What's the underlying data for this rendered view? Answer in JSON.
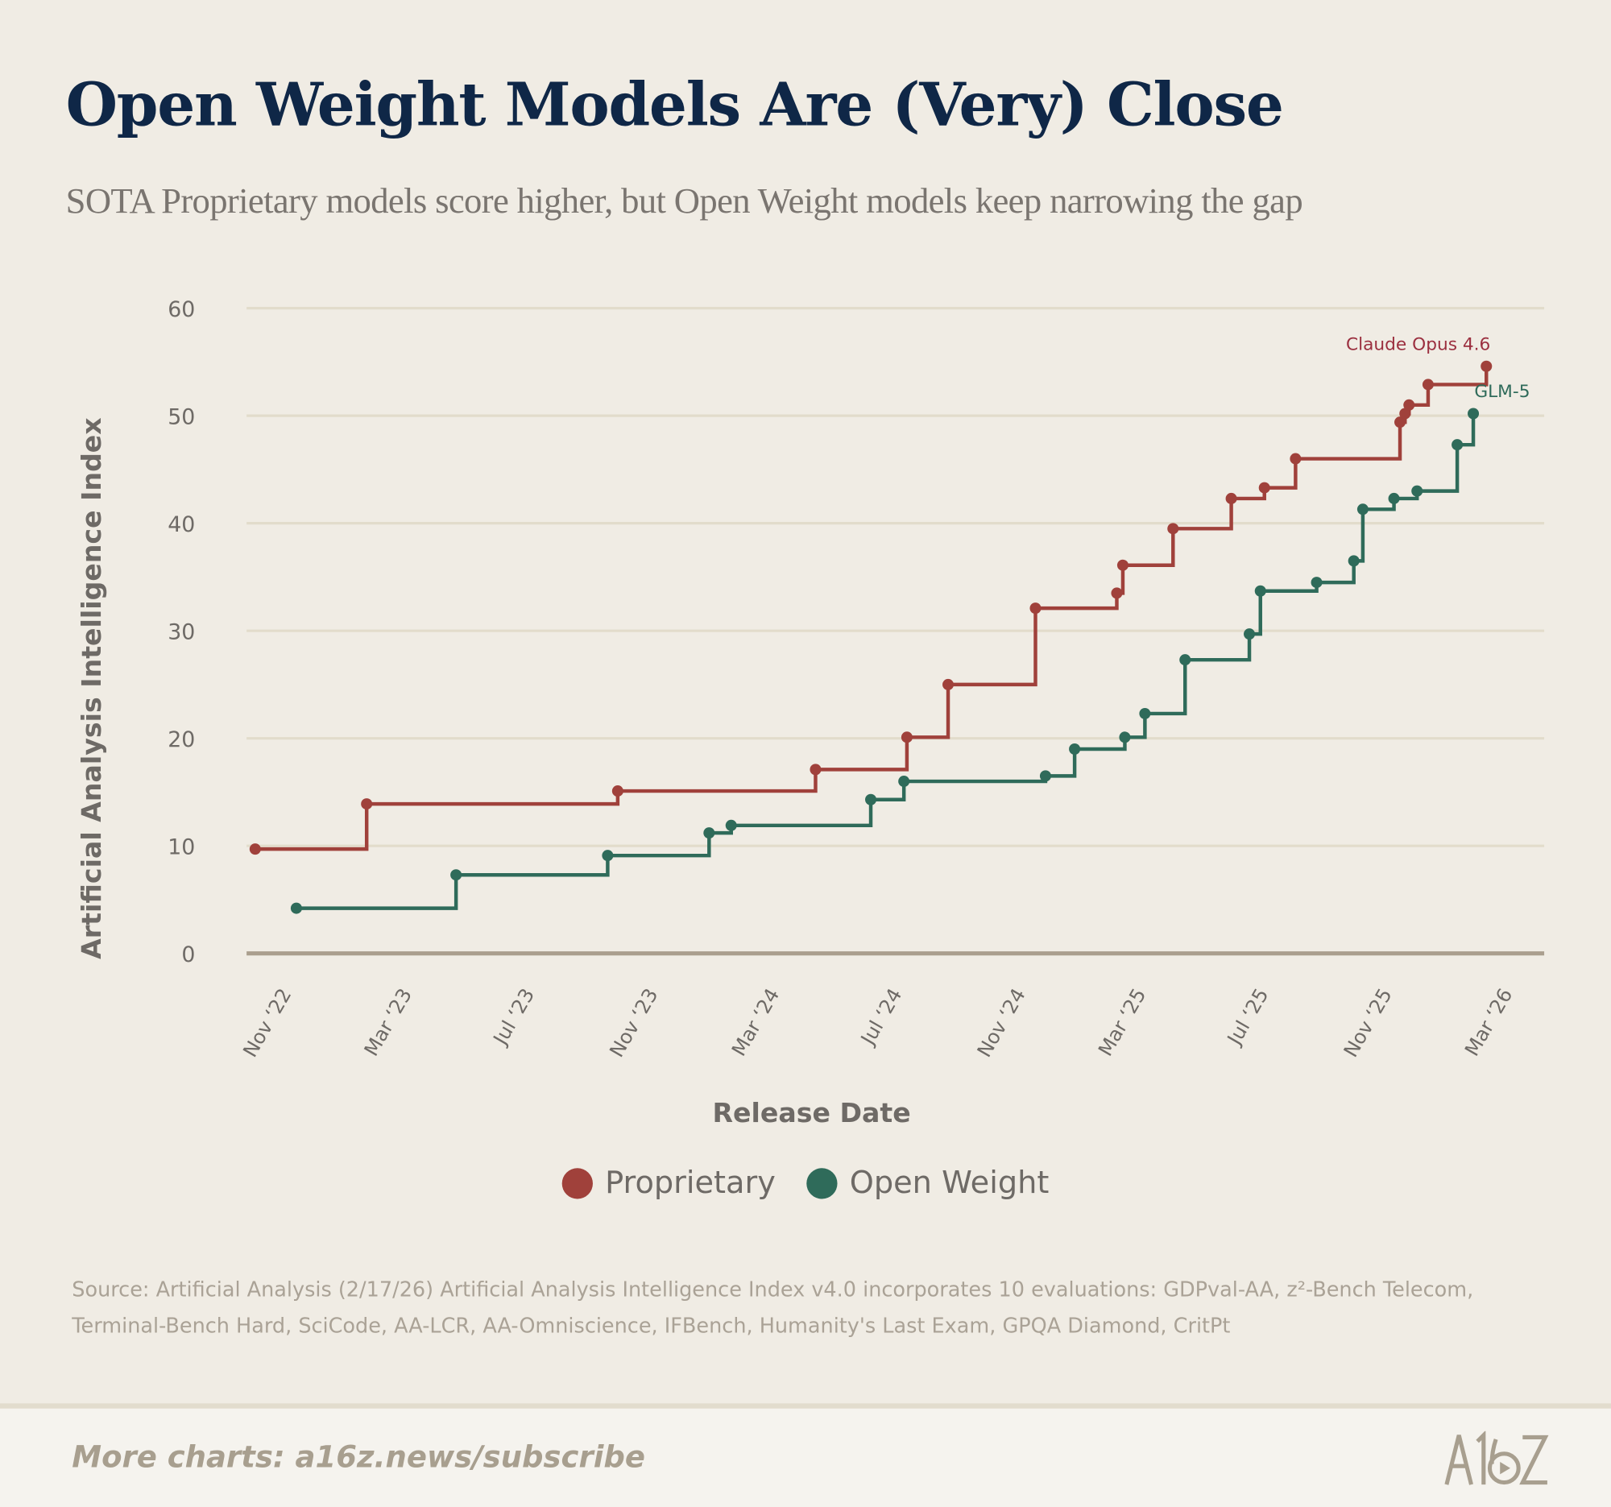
{
  "header": {
    "title": "Open Weight Models Are (Very) Close",
    "subtitle": "SOTA Proprietary models score higher, but Open Weight models keep narrowing the gap"
  },
  "chart_data": {
    "type": "line",
    "step": true,
    "xlabel": "Release Date",
    "ylabel": "Artificial Analysis Intelligence Index",
    "ylim": [
      0,
      60
    ],
    "yticks": [
      0,
      10,
      20,
      30,
      40,
      50,
      60
    ],
    "xticks": [
      {
        "date": "2022-11-01",
        "label": "Nov ‘22"
      },
      {
        "date": "2023-03-01",
        "label": "Mar ‘23"
      },
      {
        "date": "2023-07-01",
        "label": "Jul ‘23"
      },
      {
        "date": "2023-11-01",
        "label": "Nov ‘23"
      },
      {
        "date": "2024-03-01",
        "label": "Mar ‘24"
      },
      {
        "date": "2024-07-01",
        "label": "Jul ‘24"
      },
      {
        "date": "2024-11-01",
        "label": "Nov ‘24"
      },
      {
        "date": "2025-03-01",
        "label": "Mar ‘25"
      },
      {
        "date": "2025-07-01",
        "label": "Jul ‘25"
      },
      {
        "date": "2025-11-01",
        "label": "Nov ‘25"
      },
      {
        "date": "2026-03-01",
        "label": "Mar ‘26"
      }
    ],
    "grid": true,
    "legend_position": "bottom",
    "series": [
      {
        "name": "Proprietary",
        "color": "#a0413b",
        "annotation": "Claude Opus 4.6",
        "annotation_color": "#9b2f3f",
        "points": [
          [
            "2022-10-15",
            9.7
          ],
          [
            "2023-02-03",
            13.9
          ],
          [
            "2023-10-11",
            15.1
          ],
          [
            "2024-04-25",
            17.1
          ],
          [
            "2024-07-25",
            20.1
          ],
          [
            "2024-09-04",
            25.0
          ],
          [
            "2024-11-30",
            32.1
          ],
          [
            "2025-02-19",
            33.5
          ],
          [
            "2025-02-25",
            36.1
          ],
          [
            "2025-04-16",
            39.5
          ],
          [
            "2025-06-13",
            42.3
          ],
          [
            "2025-07-16",
            43.3
          ],
          [
            "2025-08-16",
            46.0
          ],
          [
            "2025-11-28",
            49.4
          ],
          [
            "2025-12-03",
            50.2
          ],
          [
            "2025-12-07",
            51.0
          ],
          [
            "2025-12-26",
            52.9
          ],
          [
            "2026-02-22",
            54.6
          ]
        ]
      },
      {
        "name": "Open Weight",
        "color": "#2f6b5a",
        "annotation": "GLM-5",
        "annotation_color": "#2f6b5a",
        "points": [
          [
            "2022-11-25",
            4.2
          ],
          [
            "2023-05-03",
            7.3
          ],
          [
            "2023-10-01",
            9.1
          ],
          [
            "2024-01-10",
            11.2
          ],
          [
            "2024-02-01",
            11.9
          ],
          [
            "2024-06-19",
            14.3
          ],
          [
            "2024-07-22",
            16.0
          ],
          [
            "2024-12-10",
            16.5
          ],
          [
            "2025-01-08",
            19.0
          ],
          [
            "2025-02-27",
            20.1
          ],
          [
            "2025-03-19",
            22.3
          ],
          [
            "2025-04-28",
            27.3
          ],
          [
            "2025-07-01",
            29.7
          ],
          [
            "2025-07-12",
            33.7
          ],
          [
            "2025-09-06",
            34.5
          ],
          [
            "2025-10-13",
            36.5
          ],
          [
            "2025-10-22",
            41.3
          ],
          [
            "2025-11-22",
            42.3
          ],
          [
            "2025-12-15",
            43.0
          ],
          [
            "2026-01-24",
            47.3
          ],
          [
            "2026-02-09",
            50.2
          ]
        ]
      }
    ]
  },
  "legend": {
    "items": [
      {
        "label": "Proprietary",
        "color": "#a0413b"
      },
      {
        "label": "Open Weight",
        "color": "#2f6b5a"
      }
    ]
  },
  "source": "Source: Artificial Analysis (2/17/26) Artificial Analysis Intelligence Index v4.0 incorporates 10 evaluations: GDPval-AA, z²-Bench Telecom, Terminal-Bench Hard, SciCode, AA-LCR, AA-Omniscience, IFBench, Humanity's Last Exam, GPQA Diamond, CritPt",
  "footer": {
    "more": "More charts: a16z.news/subscribe",
    "logo": "A16Z"
  }
}
